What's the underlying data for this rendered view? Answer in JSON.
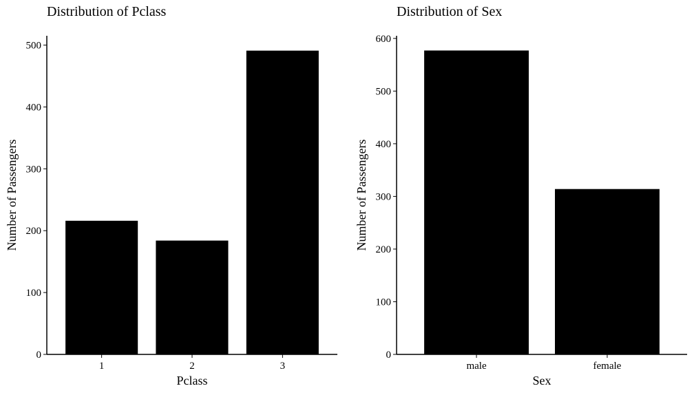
{
  "chart_data": [
    {
      "type": "bar",
      "title": "Distribution of Pclass",
      "xlabel": "Pclass",
      "ylabel": "Number of Passengers",
      "categories": [
        "1",
        "2",
        "3"
      ],
      "values": [
        216,
        184,
        491
      ],
      "ylim": [
        0,
        515
      ],
      "yticks": [
        0,
        100,
        200,
        300,
        400,
        500
      ],
      "bar_color": "#000000",
      "grid": false,
      "legend": "none"
    },
    {
      "type": "bar",
      "title": "Distribution of Sex",
      "xlabel": "Sex",
      "ylabel": "Number of Passengers",
      "categories": [
        "male",
        "female"
      ],
      "values": [
        577,
        314
      ],
      "ylim": [
        0,
        605
      ],
      "yticks": [
        0,
        100,
        200,
        300,
        400,
        500,
        600
      ],
      "bar_color": "#000000",
      "grid": false,
      "legend": "none"
    }
  ]
}
